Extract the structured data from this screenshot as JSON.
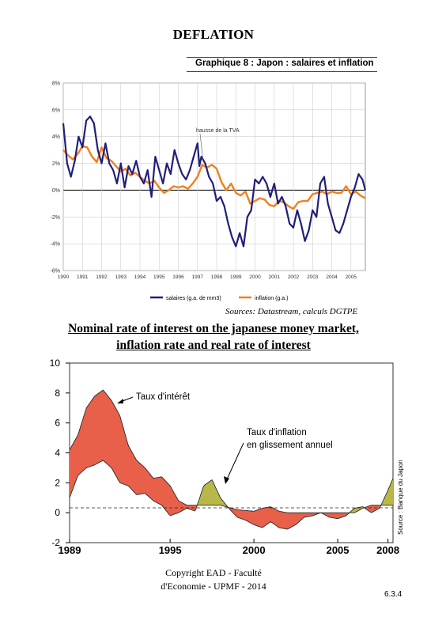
{
  "page": {
    "title": "DEFLATION",
    "footer_line1": "Copyright EAD - Faculté",
    "footer_line2": "d'Economie - UPMF - 2014",
    "page_number": "6.3.4"
  },
  "figure1": {
    "title": "Graphique 8 : Japon : salaires et inflation",
    "annotation": "hausse de la TVA",
    "source": "Sources: Datastream, calculs DGTPE",
    "legend": [
      "salaires (g.a. de mm3)",
      "inflation (g.a.)"
    ],
    "colors": {
      "salaires": "#1f1f7a",
      "inflation": "#f08020"
    }
  },
  "heading2": {
    "line1": "Nominal rate of interest on the japanese money market,",
    "line2": "inflation rate and real rate of interest"
  },
  "figure2": {
    "annotation_interest": "Taux d'intérêt",
    "annotation_inflation_1": "Taux d'inflation",
    "annotation_inflation_2": "en glissement annuel",
    "source": "Source : Banque du Japon",
    "colors": {
      "real_positive": "#e8604a",
      "real_negative": "#e8604a",
      "inflation_above": "#b8b84a"
    }
  },
  "chart_data": [
    {
      "type": "line",
      "title": "Graphique 8 : Japon : salaires et inflation",
      "x_ticks": [
        "1990",
        "1991",
        "1992",
        "1993",
        "1994",
        "1995",
        "1996",
        "1997",
        "1998",
        "1999",
        "2000",
        "2001",
        "2002",
        "2003",
        "2004",
        "2005"
      ],
      "y_ticks": [
        "8%",
        "6%",
        "4%",
        "2%",
        "0%",
        "-2%",
        "-4%",
        "-6%"
      ],
      "ylim": [
        -6,
        8
      ],
      "xlim": [
        1990,
        2005.75
      ],
      "grid": true,
      "series": [
        {
          "name": "salaires (g.a. de mm3)",
          "x": [
            1990,
            1990.2,
            1990.4,
            1990.6,
            1990.8,
            1991,
            1991.2,
            1991.4,
            1991.6,
            1991.8,
            1992,
            1992.2,
            1992.4,
            1992.6,
            1992.8,
            1993,
            1993.2,
            1993.4,
            1993.6,
            1993.8,
            1994,
            1994.2,
            1994.4,
            1994.6,
            1994.8,
            1995,
            1995.2,
            1995.4,
            1995.6,
            1995.8,
            1996,
            1996.2,
            1996.4,
            1996.6,
            1996.8,
            1997,
            1997.1,
            1997.2,
            1997.4,
            1997.6,
            1997.8,
            1998,
            1998.2,
            1998.4,
            1998.6,
            1998.8,
            1999,
            1999.2,
            1999.4,
            1999.6,
            1999.8,
            2000,
            2000.2,
            2000.4,
            2000.6,
            2000.8,
            2001,
            2001.2,
            2001.4,
            2001.6,
            2001.8,
            2002,
            2002.2,
            2002.4,
            2002.6,
            2002.8,
            2003,
            2003.2,
            2003.4,
            2003.6,
            2003.8,
            2004,
            2004.2,
            2004.4,
            2004.6,
            2004.8,
            2005,
            2005.2,
            2005.4,
            2005.6,
            2005.75
          ],
          "values": [
            5.0,
            2.0,
            1.0,
            2.2,
            4.0,
            3.2,
            5.2,
            5.5,
            5.0,
            3.0,
            2.0,
            3.5,
            2.0,
            1.5,
            0.5,
            2.0,
            0.2,
            1.8,
            1.2,
            2.2,
            1.0,
            0.5,
            1.5,
            -0.5,
            2.5,
            1.5,
            0.5,
            2.0,
            1.2,
            3.0,
            2.0,
            1.2,
            0.8,
            1.5,
            2.5,
            3.5,
            1.8,
            2.5,
            2.0,
            1.0,
            0.5,
            -0.8,
            -0.5,
            -1.2,
            -2.5,
            -3.5,
            -4.2,
            -3.2,
            -4.2,
            -2.0,
            -1.5,
            0.8,
            0.5,
            1.0,
            0.5,
            -0.5,
            0.5,
            -1.0,
            -0.5,
            -1.2,
            -2.5,
            -2.8,
            -1.5,
            -2.5,
            -3.8,
            -3.0,
            -1.5,
            -2.0,
            0.5,
            1.0,
            -1.0,
            -2.0,
            -3.0,
            -3.2,
            -2.5,
            -1.5,
            -0.5,
            0.2,
            1.2,
            0.8,
            0.0
          ]
        },
        {
          "name": "inflation (g.a.)",
          "x": [
            1990,
            1990.25,
            1990.5,
            1990.75,
            1991,
            1991.25,
            1991.5,
            1991.75,
            1992,
            1992.25,
            1992.5,
            1992.75,
            1993,
            1993.25,
            1993.5,
            1993.75,
            1994,
            1994.25,
            1994.5,
            1994.75,
            1995,
            1995.25,
            1995.5,
            1995.75,
            1996,
            1996.25,
            1996.5,
            1996.75,
            1997,
            1997.25,
            1997.5,
            1997.75,
            1998,
            1998.25,
            1998.5,
            1998.75,
            1999,
            1999.25,
            1999.5,
            1999.75,
            2000,
            2000.25,
            2000.5,
            2000.75,
            2001,
            2001.25,
            2001.5,
            2001.75,
            2002,
            2002.25,
            2002.5,
            2002.75,
            2003,
            2003.25,
            2003.5,
            2003.75,
            2004,
            2004.25,
            2004.5,
            2004.75,
            2005,
            2005.25,
            2005.5,
            2005.75
          ],
          "values": [
            3.0,
            2.6,
            2.3,
            2.7,
            3.3,
            3.2,
            2.5,
            2.1,
            3.2,
            2.4,
            2.2,
            1.8,
            1.4,
            1.6,
            1.1,
            1.3,
            1.0,
            0.7,
            0.5,
            0.7,
            0.2,
            -0.2,
            0.0,
            0.3,
            0.2,
            0.3,
            0.1,
            0.5,
            1.0,
            1.9,
            1.7,
            1.9,
            1.6,
            0.6,
            0.0,
            0.5,
            -0.2,
            -0.4,
            -0.1,
            -1.0,
            -0.8,
            -0.6,
            -0.7,
            -1.1,
            -1.2,
            -0.8,
            -0.9,
            -1.2,
            -1.4,
            -0.9,
            -0.8,
            -0.8,
            -0.3,
            -0.2,
            -0.1,
            -0.3,
            -0.1,
            -0.2,
            -0.2,
            0.3,
            -0.3,
            -0.1,
            -0.4,
            -0.6
          ]
        }
      ]
    },
    {
      "type": "area",
      "title": "Nominal rate of interest on the japanese money market, inflation rate and real rate of interest",
      "x_ticks": [
        "1989",
        "1995",
        "2000",
        "2005",
        "2008"
      ],
      "y_ticks": [
        "10",
        "8",
        "6",
        "4",
        "2",
        "0",
        "-2"
      ],
      "ylim": [
        -2,
        10
      ],
      "xlim": [
        1989,
        2008.3
      ],
      "series": [
        {
          "name": "Taux d'intérêt",
          "x": [
            1989,
            1989.5,
            1990,
            1990.5,
            1991,
            1991.5,
            1992,
            1992.5,
            1993,
            1993.5,
            1994,
            1994.5,
            1995,
            1995.5,
            1996,
            1997,
            1998,
            1999,
            2000,
            2000.5,
            2001,
            2001.5,
            2002,
            2003,
            2004,
            2005,
            2006,
            2006.5,
            2007,
            2007.5,
            2008,
            2008.3
          ],
          "values": [
            4.2,
            5.2,
            7.0,
            7.8,
            8.2,
            7.5,
            6.5,
            4.5,
            3.5,
            3.0,
            2.3,
            2.4,
            1.8,
            0.8,
            0.5,
            0.5,
            0.5,
            0.2,
            0.1,
            0.3,
            0.4,
            0.1,
            0.0,
            0.0,
            0.0,
            0.0,
            0.0,
            0.3,
            0.5,
            0.5,
            0.5,
            0.5
          ]
        },
        {
          "name": "Taux d'inflation en glissement annuel",
          "x": [
            1989,
            1989.5,
            1990,
            1990.5,
            1991,
            1991.5,
            1992,
            1992.5,
            1993,
            1993.5,
            1994,
            1994.5,
            1995,
            1995.5,
            1996,
            1996.5,
            1997,
            1997.5,
            1998,
            1998.5,
            1999,
            1999.5,
            2000,
            2000.5,
            2001,
            2001.5,
            2002,
            2002.5,
            2003,
            2003.5,
            2004,
            2004.5,
            2005,
            2005.5,
            2006,
            2006.5,
            2007,
            2007.5,
            2008,
            2008.3
          ],
          "values": [
            1.0,
            2.5,
            3.0,
            3.2,
            3.5,
            3.0,
            2.0,
            1.8,
            1.2,
            1.3,
            0.8,
            0.5,
            -0.2,
            0.0,
            0.3,
            0.1,
            1.8,
            2.2,
            1.0,
            0.3,
            -0.3,
            -0.5,
            -0.8,
            -1.0,
            -0.6,
            -1.0,
            -1.1,
            -0.8,
            -0.3,
            -0.2,
            0.0,
            -0.3,
            -0.4,
            -0.2,
            0.3,
            0.4,
            0.0,
            0.3,
            1.5,
            2.3
          ]
        }
      ]
    }
  ]
}
